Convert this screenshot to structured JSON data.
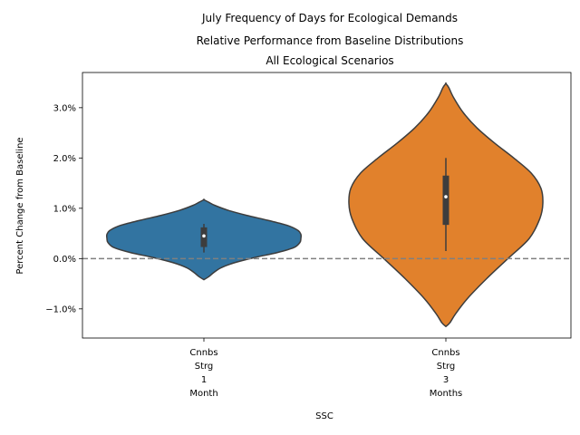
{
  "chart_data": {
    "type": "violin",
    "title_lines": [
      "July Frequency of Days for Ecological Demands",
      "Relative Performance from Baseline Distributions",
      "All Ecological Scenarios"
    ],
    "xlabel": "SSC",
    "ylabel": "Percent Change from Baseline",
    "ylim": [
      -1.58,
      3.7
    ],
    "yticks": [
      -1.0,
      0.0,
      1.0,
      2.0,
      3.0
    ],
    "ytick_labels": [
      "−1.0%",
      "0.0%",
      "1.0%",
      "2.0%",
      "3.0%"
    ],
    "reference_line": {
      "y": 0.0,
      "style": "dashed",
      "color": "#808080"
    },
    "grid": false,
    "categories": [
      {
        "lines": [
          "Cnnbs",
          "Strg",
          "1",
          "Month"
        ]
      },
      {
        "lines": [
          "Cnnbs",
          "Strg",
          "3",
          "Months"
        ]
      }
    ],
    "series": [
      {
        "color": "#3274a1",
        "min": -0.42,
        "max": 1.17,
        "q1": 0.23,
        "median": 0.45,
        "q3": 0.62,
        "whisker_low": 0.12,
        "whisker_high": 0.69,
        "density": [
          [
            -0.42,
            0.0
          ],
          [
            -0.36,
            0.05
          ],
          [
            -0.28,
            0.1
          ],
          [
            -0.18,
            0.18
          ],
          [
            -0.08,
            0.32
          ],
          [
            0.02,
            0.52
          ],
          [
            0.12,
            0.76
          ],
          [
            0.22,
            0.93
          ],
          [
            0.32,
            0.99
          ],
          [
            0.4,
            1.0
          ],
          [
            0.48,
            1.0
          ],
          [
            0.56,
            0.97
          ],
          [
            0.66,
            0.86
          ],
          [
            0.76,
            0.66
          ],
          [
            0.86,
            0.44
          ],
          [
            0.96,
            0.25
          ],
          [
            1.06,
            0.11
          ],
          [
            1.12,
            0.05
          ],
          [
            1.17,
            0.0
          ]
        ]
      },
      {
        "color": "#e1812c",
        "min": -1.35,
        "max": 3.48,
        "q1": 0.67,
        "median": 1.23,
        "q3": 1.65,
        "whisker_low": 0.15,
        "whisker_high": 2.0,
        "density": [
          [
            -1.35,
            0.0
          ],
          [
            -1.28,
            0.04
          ],
          [
            -1.1,
            0.1
          ],
          [
            -0.8,
            0.22
          ],
          [
            -0.4,
            0.42
          ],
          [
            0.0,
            0.64
          ],
          [
            0.4,
            0.86
          ],
          [
            0.8,
            0.97
          ],
          [
            1.1,
            1.0
          ],
          [
            1.4,
            0.98
          ],
          [
            1.7,
            0.88
          ],
          [
            2.0,
            0.7
          ],
          [
            2.3,
            0.5
          ],
          [
            2.6,
            0.32
          ],
          [
            2.9,
            0.18
          ],
          [
            3.2,
            0.08
          ],
          [
            3.4,
            0.03
          ],
          [
            3.48,
            0.0
          ]
        ]
      }
    ]
  }
}
